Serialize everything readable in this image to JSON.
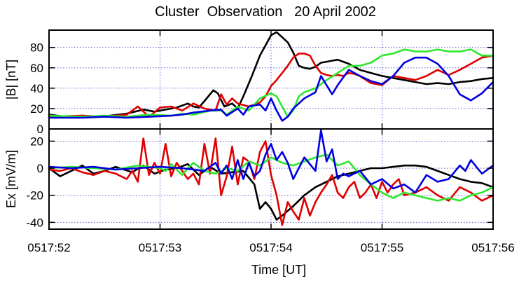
{
  "title": "Cluster  Observation   20 April 2002",
  "colors": {
    "c1": "#000000",
    "c2": "#e00000",
    "c3": "#2ee82e",
    "c4": "#0000e0",
    "grid": "#4b4bd0"
  },
  "chart_data": [
    {
      "type": "line",
      "ylabel": "|B|  [nT]",
      "ylim": [
        0,
        97
      ],
      "yticks": [
        0,
        20,
        40,
        60,
        80
      ],
      "ytick_labels": [
        "0",
        "20",
        "40",
        "60",
        "80"
      ],
      "xlim": [
        0,
        4
      ],
      "xticks": [
        0,
        1,
        2,
        3,
        4
      ],
      "grid": true,
      "series": [
        {
          "color": "#000000",
          "x": [
            0,
            0.15,
            0.3,
            0.45,
            0.55,
            0.7,
            0.85,
            0.95,
            1.05,
            1.15,
            1.25,
            1.3,
            1.35,
            1.42,
            1.48,
            1.52,
            1.58,
            1.65,
            1.7,
            1.75,
            1.82,
            1.9,
            1.95,
            2.0,
            2.05,
            2.1,
            2.15,
            2.2,
            2.25,
            2.3,
            2.35,
            2.4,
            2.45,
            2.5,
            2.55,
            2.6,
            2.65,
            2.7,
            2.8,
            2.9,
            3.0,
            3.1,
            3.2,
            3.3,
            3.4,
            3.5,
            3.6,
            3.7,
            3.8,
            3.9,
            4.0
          ],
          "y": [
            14,
            12,
            13,
            12,
            13,
            15,
            19,
            17,
            19,
            21,
            25,
            22,
            21,
            30,
            38,
            35,
            22,
            25,
            20,
            32,
            50,
            72,
            82,
            92,
            95,
            90,
            85,
            75,
            62,
            60,
            59,
            61,
            65,
            66,
            67,
            68,
            66,
            64,
            58,
            55,
            52,
            50,
            48,
            46,
            44,
            45,
            44,
            46,
            47,
            49,
            50
          ]
        },
        {
          "color": "#e00000",
          "x": [
            0,
            0.3,
            0.5,
            0.7,
            0.8,
            0.9,
            1.0,
            1.1,
            1.2,
            1.3,
            1.4,
            1.5,
            1.55,
            1.6,
            1.65,
            1.7,
            1.8,
            1.9,
            1.95,
            2.0,
            2.05,
            2.1,
            2.15,
            2.2,
            2.25,
            2.3,
            2.35,
            2.4,
            2.45,
            2.5,
            2.55,
            2.6,
            2.65,
            2.7,
            2.75,
            2.8,
            2.9,
            3.0,
            3.1,
            3.2,
            3.3,
            3.4,
            3.5,
            3.6,
            3.7,
            3.8,
            3.9,
            4.0
          ],
          "y": [
            12,
            13,
            12,
            14,
            22,
            12,
            21,
            22,
            18,
            25,
            20,
            18,
            34,
            24,
            30,
            25,
            22,
            26,
            32,
            42,
            48,
            55,
            62,
            70,
            74,
            74,
            72,
            62,
            55,
            53,
            52,
            53,
            52,
            55,
            54,
            52,
            45,
            43,
            52,
            50,
            48,
            52,
            58,
            53,
            58,
            64,
            70,
            72
          ]
        },
        {
          "color": "#2ee82e",
          "x": [
            0,
            0.3,
            0.5,
            0.7,
            0.9,
            1.1,
            1.2,
            1.3,
            1.45,
            1.55,
            1.6,
            1.7,
            1.8,
            1.9,
            2.0,
            2.05,
            2.1,
            2.15,
            2.2,
            2.25,
            2.3,
            2.4,
            2.5,
            2.6,
            2.7,
            2.8,
            2.9,
            3.0,
            3.1,
            3.2,
            3.3,
            3.4,
            3.5,
            3.6,
            3.7,
            3.8,
            3.9,
            4.0
          ],
          "y": [
            13,
            12,
            13,
            12,
            14,
            13,
            15,
            14,
            18,
            18,
            14,
            22,
            18,
            30,
            35,
            32,
            22,
            12,
            18,
            32,
            36,
            40,
            48,
            55,
            62,
            62,
            65,
            72,
            74,
            78,
            76,
            76,
            78,
            76,
            76,
            78,
            72,
            72
          ]
        },
        {
          "color": "#0000e0",
          "x": [
            0,
            0.3,
            0.5,
            0.7,
            0.9,
            1.1,
            1.2,
            1.3,
            1.45,
            1.55,
            1.6,
            1.7,
            1.75,
            1.8,
            1.9,
            1.95,
            2.0,
            2.05,
            2.1,
            2.15,
            2.2,
            2.3,
            2.4,
            2.45,
            2.5,
            2.55,
            2.6,
            2.7,
            2.8,
            2.9,
            3.0,
            3.1,
            3.2,
            3.3,
            3.4,
            3.5,
            3.6,
            3.7,
            3.8,
            3.9,
            4.0
          ],
          "y": [
            11,
            11,
            12,
            11,
            12,
            13,
            14,
            16,
            18,
            19,
            13,
            20,
            14,
            22,
            24,
            18,
            30,
            18,
            8,
            12,
            20,
            30,
            36,
            52,
            43,
            34,
            43,
            58,
            52,
            47,
            44,
            52,
            65,
            70,
            70,
            64,
            52,
            34,
            28,
            35,
            46
          ]
        }
      ]
    },
    {
      "type": "line",
      "ylabel": "Ex  [mV/m]",
      "ylim": [
        -45,
        29
      ],
      "yticks": [
        -40,
        -20,
        0,
        20
      ],
      "ytick_labels": [
        "-40",
        "-20",
        "0",
        "20"
      ],
      "xlabel": "Time  [UT]",
      "xlim": [
        0,
        4
      ],
      "xticks": [
        0,
        1,
        2,
        3,
        4
      ],
      "xtick_labels": [
        "0517:52",
        "0517:53",
        "0517:54",
        "0517:55",
        "0517:56"
      ],
      "grid": true,
      "series": [
        {
          "color": "#000000",
          "x": [
            0,
            0.1,
            0.2,
            0.3,
            0.4,
            0.5,
            0.6,
            0.75,
            0.85,
            0.95,
            1.05,
            1.15,
            1.25,
            1.35,
            1.45,
            1.55,
            1.65,
            1.75,
            1.85,
            1.9,
            1.95,
            2.0,
            2.05,
            2.1,
            2.2,
            2.3,
            2.4,
            2.5,
            2.6,
            2.7,
            2.8,
            2.9,
            3.0,
            3.1,
            3.2,
            3.3,
            3.4,
            3.5,
            3.6,
            3.7,
            3.8,
            3.9,
            4.0
          ],
          "y": [
            0,
            -6,
            -2,
            2,
            -4,
            -2,
            1,
            -3,
            2,
            -4,
            -1,
            0,
            3,
            -5,
            1,
            -4,
            -3,
            -2,
            -12,
            -30,
            -25,
            -30,
            -38,
            -35,
            -28,
            -20,
            -14,
            -10,
            -6,
            -4,
            -2,
            0,
            0,
            1,
            2,
            2,
            1,
            -2,
            -5,
            -8,
            -10,
            -11,
            -14
          ]
        },
        {
          "color": "#e00000",
          "x": [
            0,
            0.1,
            0.2,
            0.3,
            0.4,
            0.5,
            0.6,
            0.7,
            0.75,
            0.8,
            0.85,
            0.9,
            0.95,
            1.0,
            1.05,
            1.1,
            1.15,
            1.2,
            1.25,
            1.3,
            1.35,
            1.4,
            1.45,
            1.5,
            1.55,
            1.6,
            1.65,
            1.7,
            1.75,
            1.8,
            1.85,
            1.9,
            1.95,
            2.0,
            2.05,
            2.1,
            2.15,
            2.2,
            2.25,
            2.3,
            2.35,
            2.4,
            2.45,
            2.5,
            2.55,
            2.6,
            2.65,
            2.7,
            2.75,
            2.8,
            2.85,
            2.9,
            2.95,
            3.0,
            3.05,
            3.1,
            3.15,
            3.2,
            3.3,
            3.4,
            3.5,
            3.6,
            3.7,
            3.8,
            3.9,
            4.0
          ],
          "y": [
            -1,
            -2,
            0,
            -3,
            -5,
            -2,
            -4,
            -8,
            -2,
            -10,
            22,
            -5,
            4,
            -4,
            18,
            -6,
            4,
            -2,
            -8,
            -4,
            -12,
            18,
            -4,
            22,
            -20,
            -6,
            16,
            -12,
            8,
            5,
            -8,
            12,
            20,
            -5,
            -20,
            -42,
            -25,
            -32,
            -38,
            -22,
            -35,
            -25,
            -18,
            -12,
            -5,
            -18,
            -22,
            -14,
            -10,
            -22,
            -18,
            -12,
            -22,
            -10,
            -18,
            -12,
            -8,
            -20,
            -18,
            -14,
            -20,
            -24,
            -14,
            -18,
            -24,
            -20
          ]
        },
        {
          "color": "#2ee82e",
          "x": [
            0,
            0.2,
            0.4,
            0.6,
            0.8,
            1.0,
            1.05,
            1.1,
            1.15,
            1.2,
            1.25,
            1.3,
            1.4,
            1.5,
            1.6,
            1.7,
            1.8,
            1.9,
            2.0,
            2.1,
            2.2,
            2.3,
            2.4,
            2.5,
            2.6,
            2.7,
            2.8,
            2.9,
            3.0,
            3.1,
            3.2,
            3.3,
            3.4,
            3.5,
            3.6,
            3.7,
            3.8,
            3.9,
            4.0
          ],
          "y": [
            0,
            1,
            0,
            -1,
            2,
            0,
            -2,
            3,
            -1,
            -5,
            0,
            4,
            -2,
            -4,
            0,
            -2,
            5,
            2,
            8,
            4,
            2,
            5,
            8,
            10,
            2,
            5,
            -5,
            -12,
            -18,
            -22,
            -18,
            -20,
            -22,
            -24,
            -22,
            -24,
            -20,
            -18,
            -14
          ]
        },
        {
          "color": "#0000e0",
          "x": [
            0,
            0.2,
            0.4,
            0.6,
            0.8,
            1.0,
            1.2,
            1.4,
            1.5,
            1.55,
            1.6,
            1.65,
            1.7,
            1.75,
            1.8,
            1.85,
            1.9,
            1.95,
            2.0,
            2.05,
            2.1,
            2.15,
            2.2,
            2.3,
            2.4,
            2.45,
            2.5,
            2.55,
            2.6,
            2.65,
            2.7,
            2.8,
            2.9,
            3.0,
            3.1,
            3.2,
            3.3,
            3.4,
            3.5,
            3.6,
            3.7,
            3.75,
            3.8,
            3.9,
            4.0
          ],
          "y": [
            1,
            0,
            1,
            -1,
            0,
            1,
            0,
            -2,
            4,
            -4,
            2,
            -8,
            6,
            -8,
            4,
            -6,
            -2,
            10,
            18,
            6,
            12,
            4,
            -8,
            8,
            -2,
            28,
            5,
            14,
            -8,
            -4,
            -6,
            -2,
            -12,
            -8,
            -15,
            -12,
            -18,
            -5,
            -10,
            -8,
            2,
            -2,
            6,
            -4,
            2
          ]
        }
      ]
    }
  ]
}
